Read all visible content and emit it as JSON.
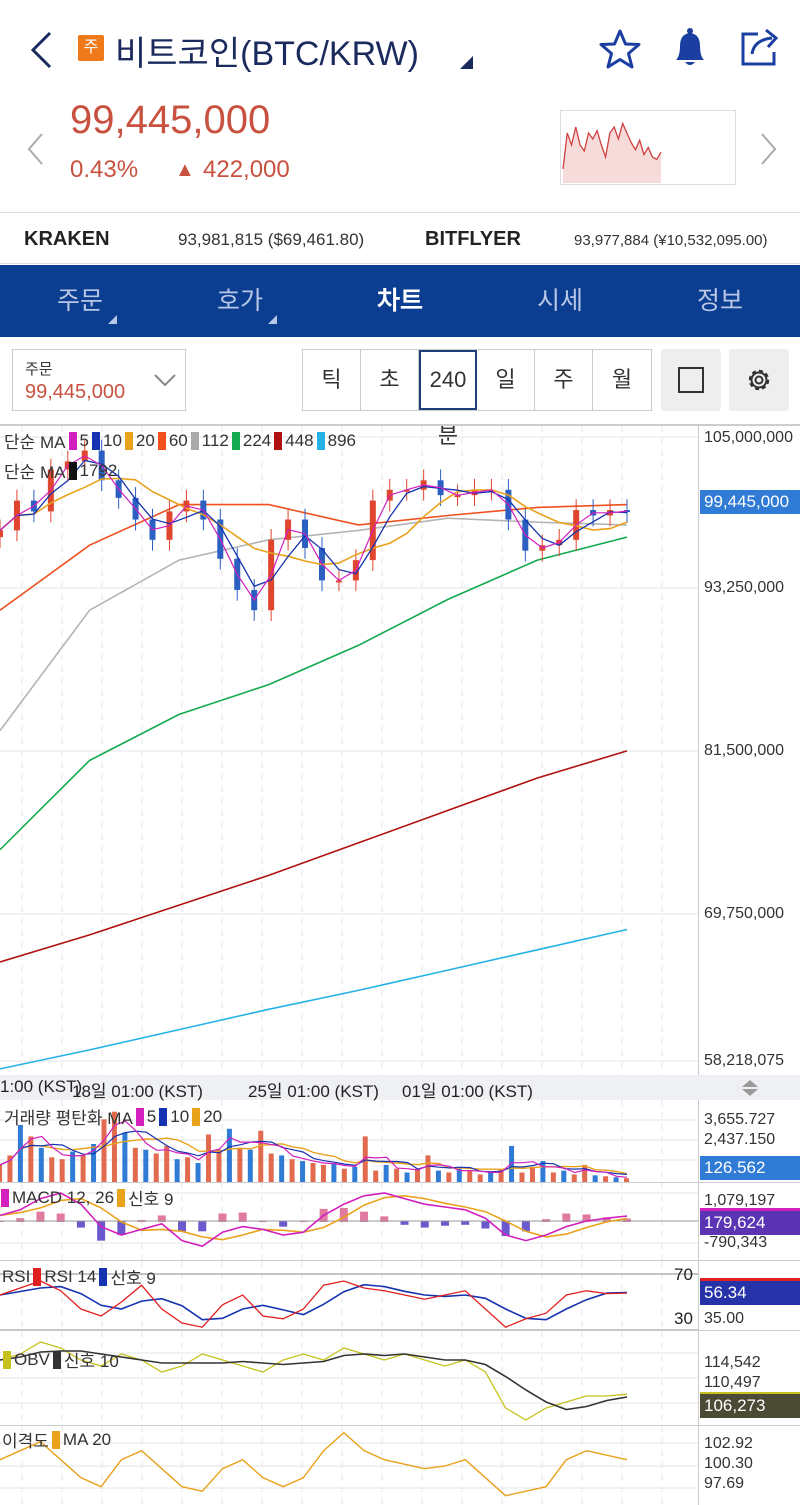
{
  "header": {
    "badge": "주",
    "title": "비트코인(BTC/KRW)",
    "icons": [
      "back-chevron-icon",
      "star-icon",
      "bell-icon",
      "share-icon"
    ]
  },
  "quote": {
    "price": "99,445,000",
    "change_pct": "0.43%",
    "change_arrow": "▲",
    "change_abs": "422,000",
    "color": "#c8513f",
    "sparkline": [
      96,
      99,
      98,
      99.5,
      98,
      97.5,
      99,
      98.5,
      99.2,
      98,
      97,
      99,
      99.5,
      98.5,
      99.8,
      99,
      98.2,
      97.6,
      98.4,
      97.2,
      97.8,
      97,
      96.8,
      97.4
    ]
  },
  "exchanges": [
    {
      "name": "KRAKEN",
      "value": "93,981,815 ($69,461.80)"
    },
    {
      "name": "BITFLYER",
      "value": "93,977,884 (¥10,532,095.00)"
    }
  ],
  "nav": {
    "tabs": [
      {
        "label": "주문",
        "dropdown": true
      },
      {
        "label": "호가",
        "dropdown": true
      },
      {
        "label": "차트",
        "active": true
      },
      {
        "label": "시세"
      },
      {
        "label": "정보"
      }
    ],
    "bg": "#0b3d91"
  },
  "toolbar": {
    "order_label": "주문",
    "order_price": "99,445,000",
    "intervals": [
      "틱",
      "초",
      "240분",
      "일",
      "주",
      "월"
    ],
    "selected": "240분"
  },
  "chart_data": {
    "type": "line",
    "main": {
      "legend1_label": "단순 MA",
      "legend1": [
        {
          "p": "5",
          "c": "#d21fbe"
        },
        {
          "p": "10",
          "c": "#1533b0"
        },
        {
          "p": "20",
          "c": "#e9a21b"
        },
        {
          "p": "60",
          "c": "#f0501e"
        },
        {
          "p": "112",
          "c": "#aaaaaa"
        },
        {
          "p": "224",
          "c": "#13a94f"
        },
        {
          "p": "448",
          "c": "#b01010"
        },
        {
          "p": "896",
          "c": "#25b3e6"
        }
      ],
      "legend2_label": "단순 MA",
      "legend2": [
        {
          "p": "1792",
          "c": "#111111"
        }
      ],
      "y_ticks": [
        "105,000,000",
        "93,250,000",
        "81,500,000",
        "69,750,000",
        "58,218,075"
      ],
      "y_tick_values": [
        105,
        93.25,
        81.5,
        69.75,
        58.2
      ],
      "current": "99,445,000",
      "current_color": "#2f7bd6",
      "unit": "million KRW",
      "closes": [
        98.1,
        100.3,
        99.5,
        102.6,
        103.2,
        104.0,
        101.8,
        100.5,
        98.9,
        97.4,
        99.5,
        100.3,
        98.9,
        96.0,
        93.7,
        92.2,
        97.4,
        98.9,
        96.8,
        94.4,
        94.4,
        95.9,
        100.3,
        101.1,
        101.1,
        101.8,
        100.7,
        100.7,
        101.1,
        101.1,
        98.9,
        96.6,
        97.0,
        97.4,
        99.6,
        99.2,
        99.6,
        99.445
      ],
      "ma60": [
        92.2,
        97.0,
        100.0,
        100.0,
        98.5,
        99.2,
        99.8,
        100.0
      ],
      "ma112": [
        83.3,
        92.2,
        95.9,
        97.4,
        98.1,
        99.0,
        98.7,
        98.5
      ],
      "ma224": [
        74.5,
        81.1,
        84.5,
        86.7,
        89.6,
        93.0,
        95.9,
        97.6
      ],
      "ma448": [
        66.2,
        68.2,
        70.4,
        72.6,
        75.0,
        77.4,
        79.8,
        81.8
      ],
      "ma896": [
        58.3,
        59.7,
        61.2,
        62.7,
        64.1,
        65.6,
        67.1,
        68.6
      ]
    },
    "x_ticks": [
      "1:00 (KST)",
      "18일 01:00 (KST)",
      "25일 01:00 (KST)",
      "01일 01:00 (KST)"
    ],
    "volume": {
      "label": "거래량 평탄화 MA",
      "ma": [
        {
          "p": "5",
          "c": "#d21fbe"
        },
        {
          "p": "10",
          "c": "#1533b0"
        },
        {
          "p": "20",
          "c": "#e9a21b"
        }
      ],
      "ticks": [
        "3,655.727",
        "2,437.150"
      ],
      "current": "126.562",
      "values": [
        900,
        1400,
        3000,
        2400,
        1800,
        1300,
        1200,
        1600,
        1400,
        2000,
        3300,
        3700,
        2600,
        1800,
        1700,
        1500,
        1900,
        1200,
        1300,
        1000,
        2500,
        1700,
        2800,
        1800,
        1700,
        2700,
        1500,
        1400,
        1200,
        1100,
        1000,
        900,
        1000,
        700,
        800,
        2400,
        600,
        900,
        700,
        500,
        700,
        1400,
        600,
        500,
        700,
        600,
        400,
        500,
        650,
        1900,
        500,
        800,
        1100,
        500,
        600,
        400,
        900,
        350,
        300,
        250,
        200
      ]
    },
    "macd": {
      "label": "MACD 12, 26",
      "signal_label": "신호 9",
      "ticks": [
        "1,079,197",
        "-790,343"
      ],
      "current": "179,624",
      "values": [
        200,
        400,
        800,
        1000,
        600,
        -200,
        -500,
        -300,
        -100,
        -700,
        -900,
        -400,
        -200,
        -300,
        -500,
        -400,
        200,
        600,
        900,
        1000,
        800,
        600,
        500,
        400,
        100,
        -500,
        -700,
        -500,
        -200,
        0,
        100,
        180
      ]
    },
    "rsi": {
      "label": "RSI 14",
      "signal_label": "신호 9",
      "levels": [
        "70",
        "30"
      ],
      "ticks": [
        "35.00"
      ],
      "current": "56.34",
      "values": [
        55,
        60,
        65,
        58,
        45,
        40,
        50,
        62,
        45,
        35,
        32,
        48,
        55,
        40,
        38,
        45,
        62,
        65,
        60,
        58,
        55,
        52,
        55,
        58,
        45,
        32,
        38,
        42,
        55,
        58,
        56,
        56.34
      ]
    },
    "obv": {
      "label": "OBV",
      "signal_label": "신호 10",
      "ticks": [
        "114,542",
        "110,497"
      ],
      "current": "106,273",
      "values": [
        112,
        113,
        115,
        114,
        112,
        111,
        113,
        112,
        110,
        111,
        113,
        112,
        111,
        110,
        112,
        113,
        112,
        114,
        113,
        112,
        113,
        112,
        111,
        112,
        110,
        104,
        102,
        104,
        105,
        106,
        106,
        106.3
      ]
    },
    "disparity": {
      "label": "이격도",
      "ma_label": "MA 20",
      "ticks": [
        "102.92",
        "100.30",
        "97.69"
      ],
      "values": [
        101,
        102,
        103,
        101,
        99,
        98,
        101,
        102,
        100,
        98,
        97.5,
        100,
        101,
        99,
        98,
        99,
        102,
        104,
        102,
        101,
        100.5,
        100,
        100.3,
        101,
        99,
        97,
        97.5,
        98,
        101,
        102,
        101.5,
        101
      ]
    }
  }
}
